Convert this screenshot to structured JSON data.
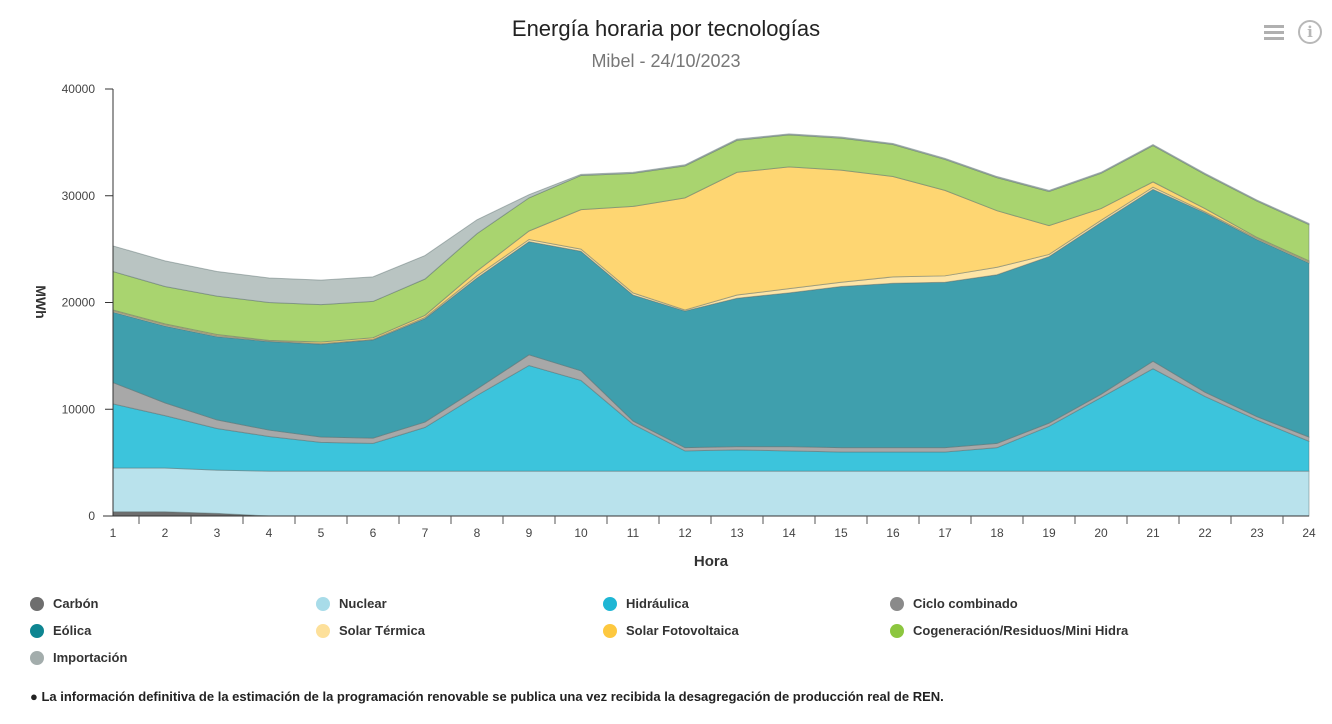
{
  "header": {
    "title": "Energía horaria por tecnologías",
    "subtitle": "Mibel - 24/10/2023"
  },
  "toolbar": {
    "menu_icon": "hamburger-menu-icon",
    "info_icon": "info-circle-icon",
    "info_glyph": "i"
  },
  "chart_data": {
    "type": "area",
    "stacked": true,
    "title": "Energía horaria por tecnologías",
    "subtitle": "Mibel - 24/10/2023",
    "xlabel": "Hora",
    "ylabel": "MWh",
    "ylim": [
      0,
      40000
    ],
    "yticks": [
      0,
      10000,
      20000,
      30000,
      40000
    ],
    "ytick_labels": [
      "0",
      "10000",
      "20000",
      "30000",
      "40000"
    ],
    "grid": false,
    "legend_position": "bottom",
    "x": [
      1,
      2,
      3,
      4,
      5,
      6,
      7,
      8,
      9,
      10,
      11,
      12,
      13,
      14,
      15,
      16,
      17,
      18,
      19,
      20,
      21,
      22,
      23,
      24
    ],
    "series": [
      {
        "name": "Carbón",
        "color": "#6e6e6e",
        "values": [
          400,
          400,
          250,
          0,
          0,
          0,
          0,
          0,
          0,
          0,
          0,
          0,
          0,
          0,
          0,
          0,
          0,
          0,
          0,
          0,
          0,
          0,
          0,
          0
        ]
      },
      {
        "name": "Nuclear",
        "color": "#b9e2ec",
        "values": [
          4100,
          4100,
          4050,
          4200,
          4200,
          4200,
          4200,
          4200,
          4200,
          4200,
          4200,
          4200,
          4200,
          4200,
          4200,
          4200,
          4200,
          4200,
          4200,
          4200,
          4200,
          4200,
          4200,
          4200
        ]
      },
      {
        "name": "Hidráulica",
        "color": "#3cc4dc",
        "values": [
          6000,
          4900,
          3900,
          3250,
          2700,
          2600,
          4100,
          7100,
          9900,
          8500,
          4400,
          1900,
          2000,
          1900,
          1800,
          1800,
          1800,
          2200,
          4200,
          6900,
          9600,
          7000,
          4800,
          2800
        ]
      },
      {
        "name": "Ciclo combinado",
        "color": "#a8a8a8",
        "values": [
          2000,
          1200,
          800,
          600,
          500,
          500,
          500,
          600,
          1000,
          900,
          300,
          300,
          300,
          400,
          400,
          400,
          400,
          400,
          300,
          300,
          700,
          400,
          300,
          400
        ]
      },
      {
        "name": "Eólica",
        "color": "#3f9fad",
        "values": [
          6600,
          7200,
          7800,
          8300,
          8700,
          9200,
          9700,
          10400,
          10600,
          11200,
          11800,
          12800,
          13900,
          14400,
          15100,
          15400,
          15500,
          15800,
          15600,
          16100,
          16100,
          16800,
          16600,
          16300
        ]
      },
      {
        "name": "Solar Térmica",
        "color": "#fde4a6",
        "values": [
          100,
          100,
          100,
          50,
          50,
          50,
          100,
          200,
          200,
          200,
          200,
          100,
          300,
          400,
          400,
          600,
          600,
          700,
          200,
          200,
          200,
          100,
          100,
          100
        ]
      },
      {
        "name": "Solar Fotovoltaica",
        "color": "#fed672",
        "values": [
          100,
          100,
          100,
          50,
          150,
          150,
          200,
          450,
          800,
          3700,
          8100,
          10500,
          11500,
          11400,
          10500,
          9400,
          8000,
          5300,
          2700,
          1100,
          500,
          300,
          100,
          100
        ]
      },
      {
        "name": "Cogeneración/Residuos/Mini Hidra",
        "color": "#a9d46f",
        "values": [
          3600,
          3500,
          3600,
          3550,
          3500,
          3400,
          3400,
          3500,
          3100,
          3200,
          3100,
          3000,
          3000,
          3000,
          3000,
          3000,
          2900,
          3100,
          3200,
          3300,
          3400,
          3200,
          3400,
          3400
        ]
      },
      {
        "name": "Importación",
        "color": "#b9c4c2",
        "values": [
          2400,
          2400,
          2300,
          2300,
          2300,
          2300,
          2200,
          1300,
          300,
          100,
          100,
          100,
          100,
          100,
          100,
          100,
          100,
          100,
          100,
          100,
          100,
          100,
          100,
          100
        ]
      }
    ],
    "xtick_labels": [
      "1",
      "2",
      "3",
      "4",
      "5",
      "6",
      "7",
      "8",
      "9",
      "10",
      "11",
      "12",
      "13",
      "14",
      "15",
      "16",
      "17",
      "18",
      "19",
      "20",
      "21",
      "22",
      "23",
      "24"
    ]
  },
  "legend": {
    "items": [
      {
        "label": "Carbón",
        "color": "#6e6e6e"
      },
      {
        "label": "Nuclear",
        "color": "#a8dce9"
      },
      {
        "label": "Hidráulica",
        "color": "#1eb6d4"
      },
      {
        "label": "Ciclo combinado",
        "color": "#8a8a8a"
      },
      {
        "label": "Eólica",
        "color": "#0e8591"
      },
      {
        "label": "Solar Térmica",
        "color": "#fde09a"
      },
      {
        "label": "Solar Fotovoltaica",
        "color": "#fdc83f"
      },
      {
        "label": "Cogeneración/Residuos/Mini Hidra",
        "color": "#8cc63f"
      },
      {
        "label": "Importación",
        "color": "#a3adac"
      }
    ]
  },
  "footnote": "● La información definitiva de la estimación de la programación renovable se publica una vez recibida la desagregación de producción real de REN."
}
